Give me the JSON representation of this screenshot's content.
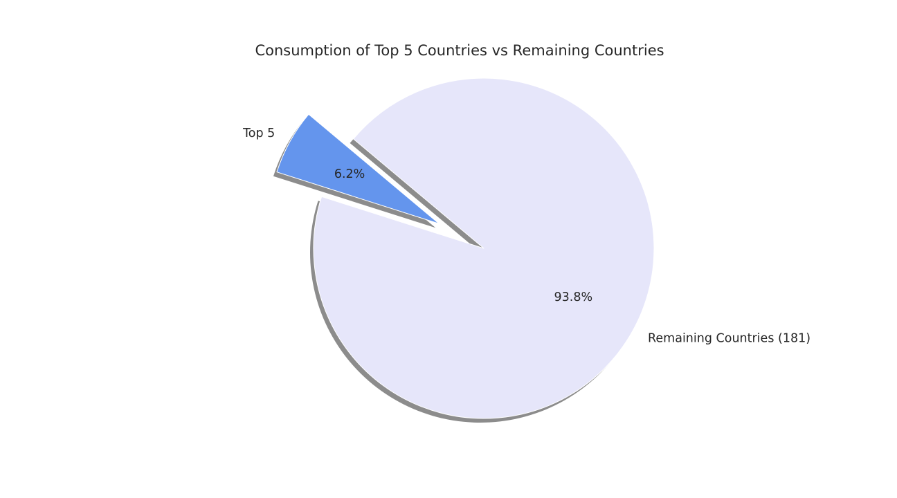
{
  "chart_data": {
    "type": "pie",
    "title": "Consumption of Top 5 Countries vs Remaining Countries",
    "labels": [
      "Top 5",
      "Remaining Countries (181)"
    ],
    "values": [
      6.2,
      93.8
    ],
    "percent_labels": [
      "6.2%",
      "93.8%"
    ],
    "colors": [
      "#6495ED",
      "#E6E6FA"
    ],
    "exploded": [
      true,
      false
    ],
    "shadow": true,
    "legend": false
  }
}
